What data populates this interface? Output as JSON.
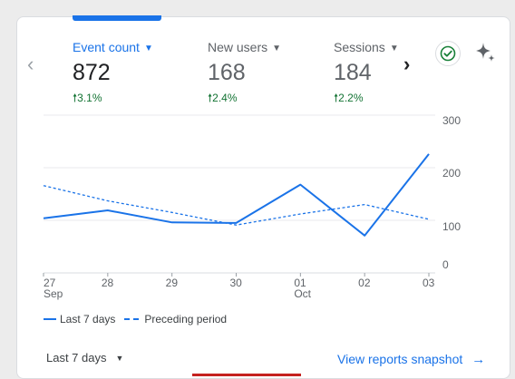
{
  "metrics": [
    {
      "label": "Event count",
      "value": "872",
      "delta": "3.1%",
      "active": true
    },
    {
      "label": "New users",
      "value": "168",
      "delta": "2.4%",
      "active": false
    },
    {
      "label": "Sessions",
      "value": "184",
      "delta": "2.2%",
      "active": false
    }
  ],
  "icons": {
    "nav_prev": "chevron-left-icon",
    "nav_next": "chevron-right-icon",
    "status": "check-circle-icon",
    "insights": "sparkle-icon",
    "delta_up": "arrow-up-icon",
    "link_arrow": "arrow-right-icon"
  },
  "colors": {
    "accent": "#1a73e8",
    "positive": "#137333",
    "check": "#188038"
  },
  "chart_data": {
    "type": "line",
    "x": [
      "27 Sep",
      "28",
      "29",
      "30",
      "01 Oct",
      "02",
      "03"
    ],
    "xtick_labels": [
      {
        "line1": "27",
        "line2": "Sep"
      },
      {
        "line1": "28",
        "line2": ""
      },
      {
        "line1": "29",
        "line2": ""
      },
      {
        "line1": "30",
        "line2": ""
      },
      {
        "line1": "01",
        "line2": "Oct"
      },
      {
        "line1": "02",
        "line2": ""
      },
      {
        "line1": "03",
        "line2": ""
      }
    ],
    "yticks": [
      0,
      100,
      200,
      300
    ],
    "ylim": [
      0,
      300
    ],
    "grid": true,
    "legend_position": "bottom-left",
    "series": [
      {
        "name": "Last 7 days",
        "style": "solid",
        "values": [
          104,
          119,
          96,
          95,
          168,
          71,
          226
        ]
      },
      {
        "name": "Preceding period",
        "style": "dashed",
        "values": [
          166,
          137,
          115,
          91,
          112,
          130,
          102
        ]
      }
    ]
  },
  "footer": {
    "period_label": "Last 7 days",
    "snapshot_label": "View reports snapshot"
  }
}
